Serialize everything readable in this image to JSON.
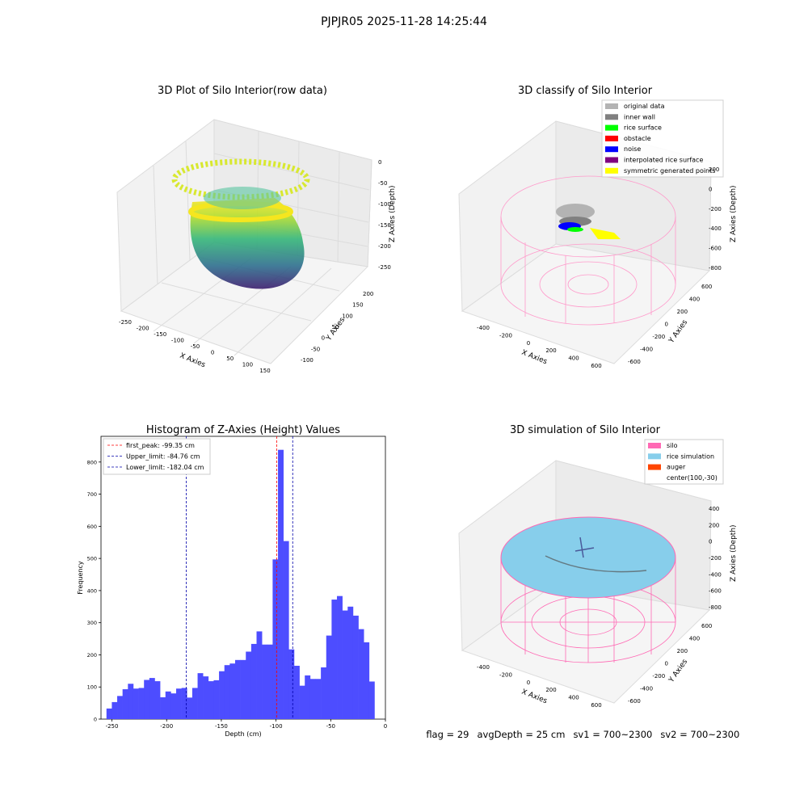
{
  "figure": {
    "suptitle": "PJPJR05 2025-11-28 14:25:44"
  },
  "panel_raw": {
    "title": "3D Plot of Silo Interior(row data)",
    "xlabel": "X Axies",
    "ylabel": "Y Axies",
    "zlabel": "Z Axies (Depth)",
    "x_ticks": [
      "-250",
      "-200",
      "-150",
      "-100",
      "-50",
      "0",
      "50",
      "100",
      "150"
    ],
    "y_ticks": [
      "-100",
      "-50",
      "0",
      "50",
      "100",
      "150",
      "200"
    ],
    "z_ticks": [
      "0",
      "-50",
      "-100",
      "-150",
      "-200",
      "-250"
    ]
  },
  "panel_classify": {
    "title": "3D classify of Silo Interior",
    "xlabel": "X Axies",
    "ylabel": "Y Axies",
    "zlabel": "Z Axies (Depth)",
    "x_ticks": [
      "-400",
      "-200",
      "0",
      "200",
      "400",
      "600"
    ],
    "y_ticks": [
      "-600",
      "-400",
      "-200",
      "0",
      "200",
      "400",
      "600"
    ],
    "z_ticks": [
      "200",
      "0",
      "-200",
      "-400",
      "-600",
      "-800"
    ],
    "legend": [
      {
        "label": "original data",
        "color": "#b3b3b3"
      },
      {
        "label": "inner wall",
        "color": "#808080"
      },
      {
        "label": "rice surface",
        "color": "#00ff00"
      },
      {
        "label": "obstacle",
        "color": "#ff0000"
      },
      {
        "label": "noise",
        "color": "#0000ff"
      },
      {
        "label": "interpolated rice surface",
        "color": "#800080"
      },
      {
        "label": "symmetric generated points",
        "color": "#ffff00"
      }
    ]
  },
  "panel_sim": {
    "title": "3D simulation of Silo Interior",
    "xlabel": "X Axies",
    "ylabel": "Y Axies",
    "zlabel": "Z Axies (Depth)",
    "x_ticks": [
      "-400",
      "-200",
      "0",
      "200",
      "400",
      "600"
    ],
    "y_ticks": [
      "-600",
      "-400",
      "-200",
      "0",
      "200",
      "400",
      "600"
    ],
    "z_ticks": [
      "400",
      "200",
      "0",
      "-200",
      "-400",
      "-600",
      "-800"
    ],
    "legend": [
      {
        "label": "silo",
        "color": "#ff69b4"
      },
      {
        "label": "rice simulation",
        "color": "#87ceeb"
      },
      {
        "label": "auger",
        "color": "#ff4500"
      },
      {
        "label": "center(100,-30)",
        "color": ""
      }
    ]
  },
  "footer": {
    "flag": "flag = 29",
    "avg": "avgDepth = 25 cm",
    "sv1": "sv1 = 700~2300",
    "sv2": "sv2 = 700~2300"
  },
  "chart_data": [
    {
      "type": "histogram",
      "title": "Histogram of Z-Axies (Height) Values",
      "xlabel": "Depth (cm)",
      "ylabel": "Frequency",
      "xlim": [
        -260,
        0
      ],
      "ylim": [
        0,
        880
      ],
      "x_ticks": [
        -250,
        -200,
        -150,
        -100,
        -50,
        0
      ],
      "y_ticks": [
        0,
        100,
        200,
        300,
        400,
        500,
        600,
        700,
        800
      ],
      "bar_color": "#4d4dff",
      "bin_start": -255,
      "bin_width": 4.9,
      "values": [
        33,
        53,
        72,
        93,
        110,
        95,
        97,
        122,
        128,
        118,
        68,
        86,
        80,
        95,
        97,
        67,
        97,
        143,
        133,
        118,
        121,
        149,
        168,
        173,
        184,
        184,
        210,
        234,
        273,
        232,
        232,
        497,
        838,
        554,
        217,
        166,
        104,
        136,
        125,
        125,
        161,
        260,
        372,
        383,
        338,
        350,
        322,
        280,
        239,
        117
      ],
      "lines": [
        {
          "label": "first_peak: -99.35 cm",
          "value": -99.35,
          "color": "#ff0000"
        },
        {
          "label": "Upper_limit: -84.76 cm",
          "value": -84.76,
          "color": "#0000aa"
        },
        {
          "label": "Lower_limit: -182.04 cm",
          "value": -182.04,
          "color": "#0000aa"
        }
      ]
    }
  ]
}
